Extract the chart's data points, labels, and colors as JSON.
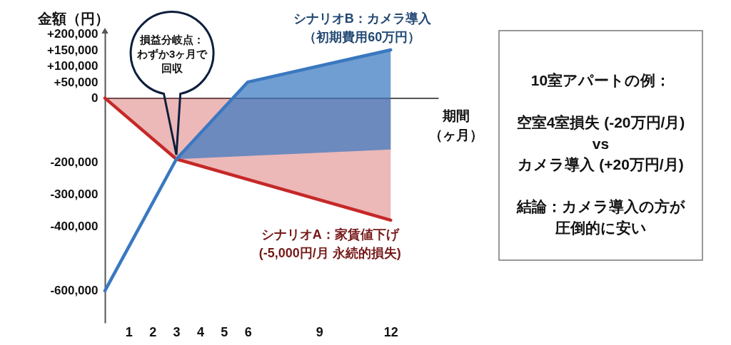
{
  "chart_data": [
    {
      "type": "line",
      "xlabel": "期間（ヶ月）",
      "ylabel": "金額（円）",
      "xlim": [
        0,
        14
      ],
      "xticks": [
        1,
        2,
        3,
        4,
        5,
        6,
        9,
        12
      ],
      "ylim": [
        -700000,
        210000
      ],
      "yticks": [
        {
          "value": 200000,
          "label": "+200,000"
        },
        {
          "value": 150000,
          "label": "+150,000"
        },
        {
          "value": 100000,
          "label": "+100,000"
        },
        {
          "value": 50000,
          "label": "+50,000"
        },
        0,
        {
          "value": -200000,
          "label": "-200,000"
        },
        {
          "value": -300000,
          "label": "-300,000"
        },
        {
          "value": -400000,
          "label": "-400,000"
        },
        {
          "value": -600000,
          "label": "-600,000"
        }
      ],
      "series": [
        {
          "name": "シナリオA：家賃値下げ(-5,000円/月 永続的損失)",
          "type": "area",
          "color": "#c62828",
          "x": [
            0,
            3,
            12
          ],
          "values": [
            0,
            -190000,
            -380000
          ]
        },
        {
          "name": "シナリオB：カメラ導入（初期費用60万円）",
          "type": "line",
          "color": "#3a78c0",
          "x": [
            0,
            3,
            6,
            12
          ],
          "values": [
            -600000,
            -190000,
            50000,
            150000
          ],
          "lower": [
            null,
            -190000,
            -180000,
            -160000
          ],
          "upper": [
            null,
            -190000,
            50000,
            150000
          ]
        }
      ],
      "annotations": [
        "損益分岐点：わずか3ヶ月で回収"
      ]
    },
    {
      "type": "other",
      "title": "10室アパートの例：",
      "annotations": [
        "空室4室損失 (-20万円/月)\nvs\nカメラ導入 (+20万円/月)",
        "結論：カメラ導入の方が圧倒的に安い"
      ]
    }
  ]
}
